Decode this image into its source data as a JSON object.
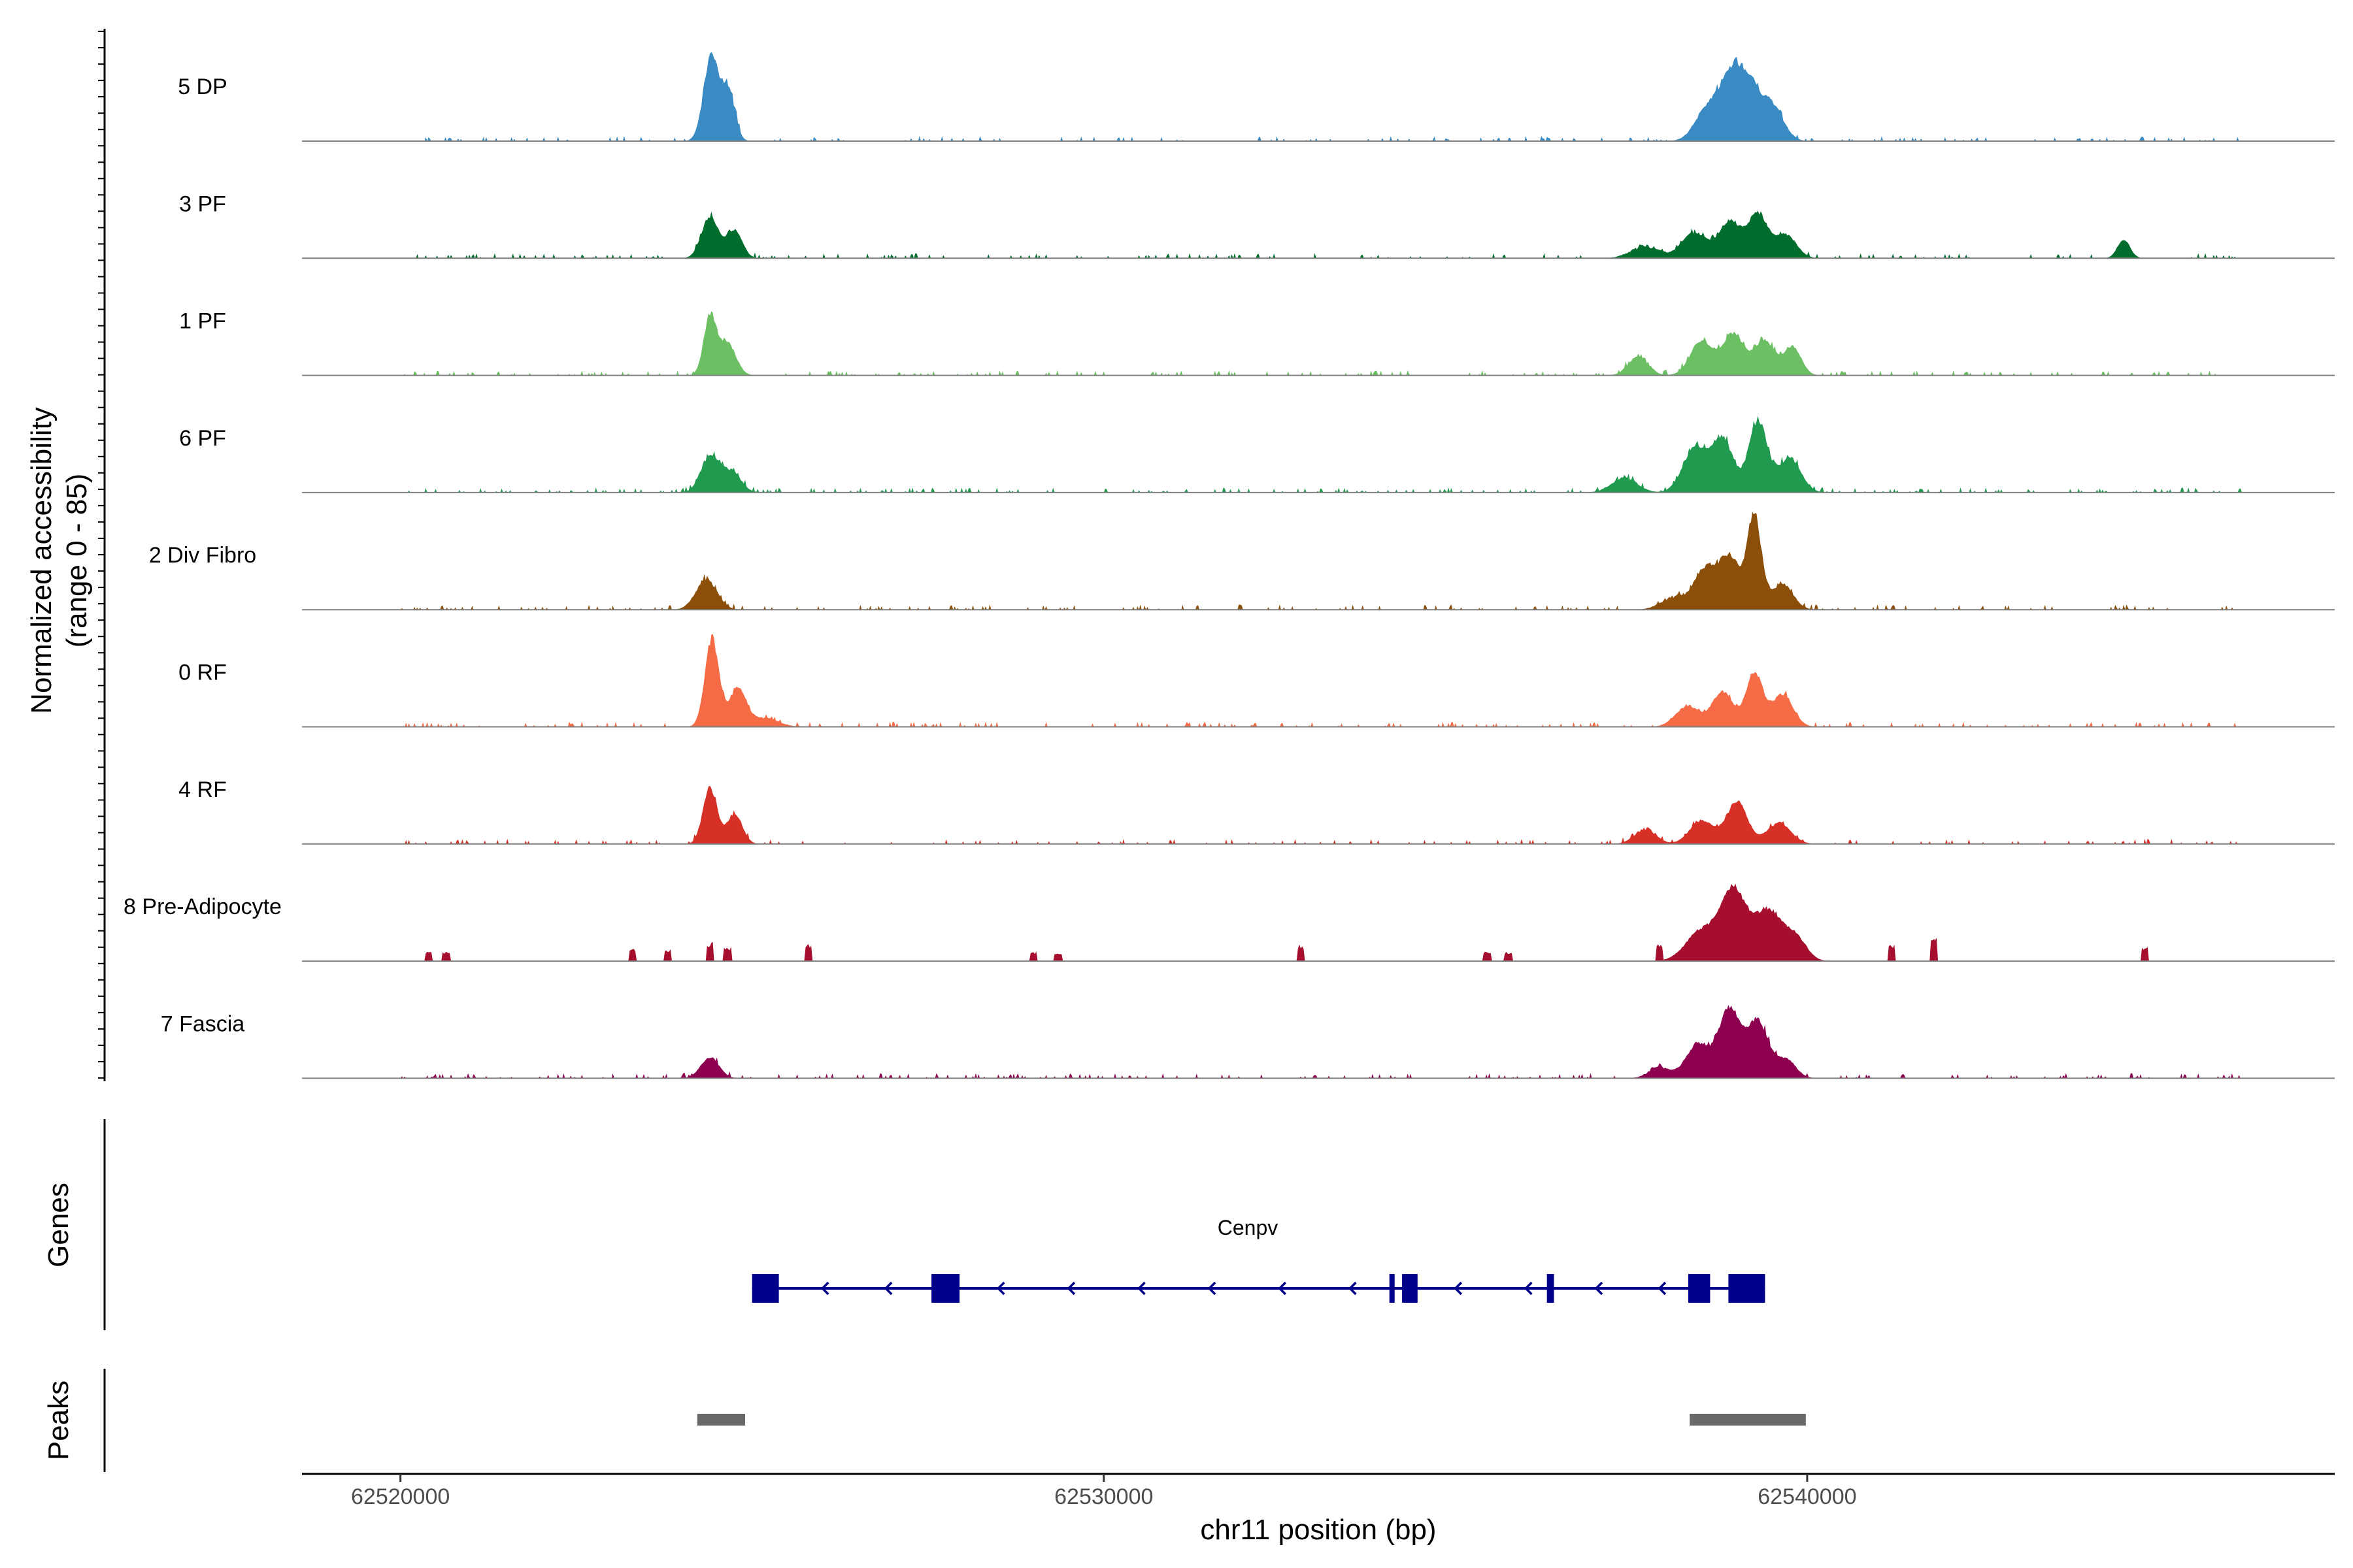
{
  "chart_data": {
    "type": "area",
    "title": "",
    "ylabel": "Normalized accessibility",
    "ylabel_range": "(range 0 - 85)",
    "ylim": [
      0,
      85
    ],
    "xlabel": "chr11 position (bp)",
    "xlim": [
      62518600,
      62547500
    ],
    "xticks": [
      {
        "value": 62520000,
        "label": "62520000"
      },
      {
        "value": 62530000,
        "label": "62530000"
      },
      {
        "value": 62540000,
        "label": "62540000"
      }
    ],
    "tracks": [
      {
        "name": "5 DP",
        "color": "#3a8bc4",
        "peaks": [
          [
            62524420,
            72,
            110,
            0.9
          ],
          [
            62524670,
            45,
            90,
            0.8
          ],
          [
            62538600,
            30,
            180,
            0.9
          ],
          [
            62538900,
            42,
            140,
            0.9
          ],
          [
            62539150,
            48,
            160,
            0.9
          ],
          [
            62539500,
            30,
            160,
            0.9
          ]
        ],
        "noise": 0.06,
        "noiseStart": 62520300,
        "noiseEnd": 62546200,
        "seed": 11
      },
      {
        "name": "3 PF",
        "color": "#006d2c",
        "peaks": [
          [
            62524400,
            36,
            120,
            0.9
          ],
          [
            62524750,
            24,
            110,
            0.9
          ],
          [
            62537700,
            12,
            200,
            0.7
          ],
          [
            62538400,
            22,
            180,
            0.9
          ],
          [
            62538900,
            32,
            150,
            0.9
          ],
          [
            62539300,
            38,
            140,
            0.9
          ],
          [
            62539700,
            20,
            150,
            0.9
          ],
          [
            62544500,
            16,
            90,
            0.9
          ]
        ],
        "noise": 0.05,
        "noiseStart": 62520000,
        "noiseEnd": 62546200,
        "seed": 23
      },
      {
        "name": "1 PF",
        "color": "#6cbf63",
        "peaks": [
          [
            62524400,
            50,
            90,
            0.9
          ],
          [
            62524650,
            28,
            120,
            0.9
          ],
          [
            62537600,
            18,
            140,
            0.8
          ],
          [
            62538500,
            30,
            160,
            0.9
          ],
          [
            62538950,
            36,
            150,
            0.9
          ],
          [
            62539400,
            30,
            150,
            0.9
          ],
          [
            62539800,
            24,
            120,
            0.9
          ]
        ],
        "noise": 0.06,
        "noiseStart": 62520000,
        "noiseEnd": 62545800,
        "seed": 37
      },
      {
        "name": "6 PF",
        "color": "#1f9a4e",
        "peaks": [
          [
            62524400,
            30,
            130,
            0.9
          ],
          [
            62524700,
            18,
            140,
            0.8
          ],
          [
            62537400,
            14,
            180,
            0.8
          ],
          [
            62538400,
            38,
            170,
            0.9
          ],
          [
            62538800,
            46,
            150,
            0.9
          ],
          [
            62539300,
            62,
            130,
            0.9
          ],
          [
            62539750,
            30,
            160,
            0.9
          ]
        ],
        "noise": 0.08,
        "noiseStart": 62520000,
        "noiseEnd": 62546200,
        "seed": 41
      },
      {
        "name": "2 Div Fibro",
        "color": "#8c4f0a",
        "peaks": [
          [
            62524350,
            26,
            150,
            0.9
          ],
          [
            62538100,
            12,
            180,
            0.7
          ],
          [
            62538550,
            34,
            160,
            0.9
          ],
          [
            62538900,
            44,
            150,
            0.9
          ],
          [
            62539250,
            80,
            100,
            0.9
          ],
          [
            62539650,
            22,
            150,
            0.9
          ]
        ],
        "noise": 0.06,
        "noiseStart": 62520000,
        "noiseEnd": 62546200,
        "seed": 53
      },
      {
        "name": "0 RF",
        "color": "#f46b45",
        "peaks": [
          [
            62524430,
            76,
            100,
            0.9
          ],
          [
            62524800,
            34,
            120,
            0.9
          ],
          [
            62525200,
            8,
            180,
            0.8
          ],
          [
            62538300,
            18,
            170,
            0.9
          ],
          [
            62538800,
            30,
            150,
            0.9
          ],
          [
            62539250,
            46,
            120,
            0.9
          ],
          [
            62539650,
            28,
            150,
            0.9
          ]
        ],
        "noise": 0.05,
        "noiseStart": 62520000,
        "noiseEnd": 62546200,
        "seed": 67
      },
      {
        "name": "4 RF",
        "color": "#d73027",
        "peaks": [
          [
            62524400,
            48,
            100,
            0.9
          ],
          [
            62524750,
            26,
            110,
            0.9
          ],
          [
            62537700,
            14,
            150,
            0.8
          ],
          [
            62538500,
            20,
            170,
            0.9
          ],
          [
            62539000,
            36,
            150,
            0.9
          ],
          [
            62539600,
            18,
            170,
            0.9
          ]
        ],
        "noise": 0.05,
        "noiseStart": 62520000,
        "noiseEnd": 62546200,
        "seed": 79
      },
      {
        "name": "8 Pre-Adipocyte",
        "color": "#a50f2d",
        "peaks": [
          [
            62538500,
            26,
            220,
            0.9
          ],
          [
            62538950,
            60,
            180,
            0.9
          ],
          [
            62539450,
            44,
            200,
            0.9
          ],
          [
            62539850,
            18,
            150,
            0.9
          ]
        ],
        "noise": 0.0,
        "noiseStart": 62520000,
        "noiseEnd": 62546200,
        "seed": 83,
        "blocks": [
          [
            62520400,
            8
          ],
          [
            62520650,
            8
          ],
          [
            62523300,
            10
          ],
          [
            62523800,
            10
          ],
          [
            62524400,
            16
          ],
          [
            62524650,
            12
          ],
          [
            62525800,
            14
          ],
          [
            62529000,
            8
          ],
          [
            62529350,
            8
          ],
          [
            62532800,
            14
          ],
          [
            62535450,
            8
          ],
          [
            62535750,
            8
          ],
          [
            62537900,
            14
          ],
          [
            62538550,
            22
          ],
          [
            62540000,
            8
          ],
          [
            62541200,
            14
          ],
          [
            62541800,
            22
          ],
          [
            62544800,
            12
          ]
        ]
      },
      {
        "name": "7 Fascia",
        "color": "#8d0050",
        "peaks": [
          [
            62524400,
            18,
            130,
            0.9
          ],
          [
            62537900,
            10,
            150,
            0.8
          ],
          [
            62538450,
            30,
            170,
            0.9
          ],
          [
            62538900,
            60,
            150,
            0.9
          ],
          [
            62539300,
            48,
            150,
            0.9
          ],
          [
            62539700,
            16,
            140,
            0.9
          ]
        ],
        "noise": 0.07,
        "noiseStart": 62520000,
        "noiseEnd": 62546200,
        "seed": 97
      }
    ],
    "genes_label": "Genes",
    "gene": {
      "name": "Cenpv",
      "strand": "-",
      "start": 62525000,
      "end": 62539400,
      "color": "#00008b",
      "exons": [
        [
          62525000,
          62525380
        ],
        [
          62527550,
          62527950
        ],
        [
          62534060,
          62534130
        ],
        [
          62534240,
          62534460
        ],
        [
          62536300,
          62536400
        ],
        [
          62538310,
          62538620
        ],
        [
          62538880,
          62539400
        ]
      ]
    },
    "peaks_label": "Peaks",
    "peak_regions": [
      [
        62524220,
        62524900
      ],
      [
        62538330,
        62539980
      ]
    ],
    "peak_color": "#696969"
  }
}
